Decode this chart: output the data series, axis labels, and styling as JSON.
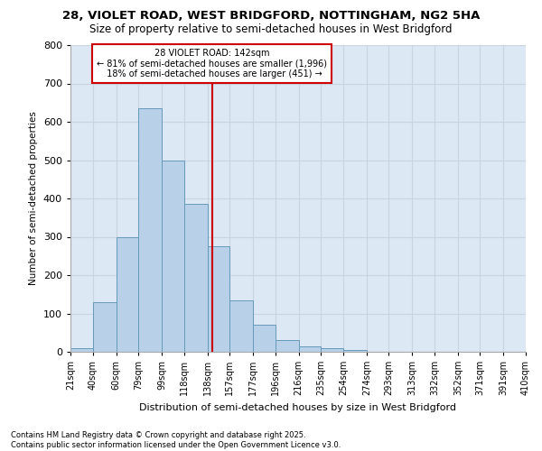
{
  "title1": "28, VIOLET ROAD, WEST BRIDGFORD, NOTTINGHAM, NG2 5HA",
  "title2": "Size of property relative to semi-detached houses in West Bridgford",
  "xlabel": "Distribution of semi-detached houses by size in West Bridgford",
  "ylabel": "Number of semi-detached properties",
  "footnote1": "Contains HM Land Registry data © Crown copyright and database right 2025.",
  "footnote2": "Contains public sector information licensed under the Open Government Licence v3.0.",
  "property_label": "28 VIOLET ROAD: 142sqm",
  "smaller_pct": "81% of semi-detached houses are smaller (1,996)",
  "larger_pct": "18% of semi-detached houses are larger (451)",
  "property_value": 142,
  "bin_edges": [
    21,
    40,
    60,
    79,
    99,
    118,
    138,
    157,
    177,
    196,
    216,
    235,
    254,
    274,
    293,
    313,
    332,
    352,
    371,
    391,
    410
  ],
  "bin_labels": [
    "21sqm",
    "40sqm",
    "60sqm",
    "79sqm",
    "99sqm",
    "118sqm",
    "138sqm",
    "157sqm",
    "177sqm",
    "196sqm",
    "216sqm",
    "235sqm",
    "254sqm",
    "274sqm",
    "293sqm",
    "313sqm",
    "332sqm",
    "352sqm",
    "371sqm",
    "391sqm",
    "410sqm"
  ],
  "bar_heights": [
    10,
    130,
    300,
    635,
    500,
    385,
    275,
    135,
    70,
    30,
    15,
    10,
    5,
    0,
    0,
    0,
    0,
    0,
    0,
    0
  ],
  "bar_color": "#b8d0e8",
  "bar_edge_color": "#6699bb",
  "grid_color": "#c8d4e0",
  "bg_color": "#dce8f4",
  "vline_color": "#cc0000",
  "box_edge_color": "#cc0000",
  "ylim": [
    0,
    800
  ],
  "yticks": [
    0,
    100,
    200,
    300,
    400,
    500,
    600,
    700,
    800
  ]
}
